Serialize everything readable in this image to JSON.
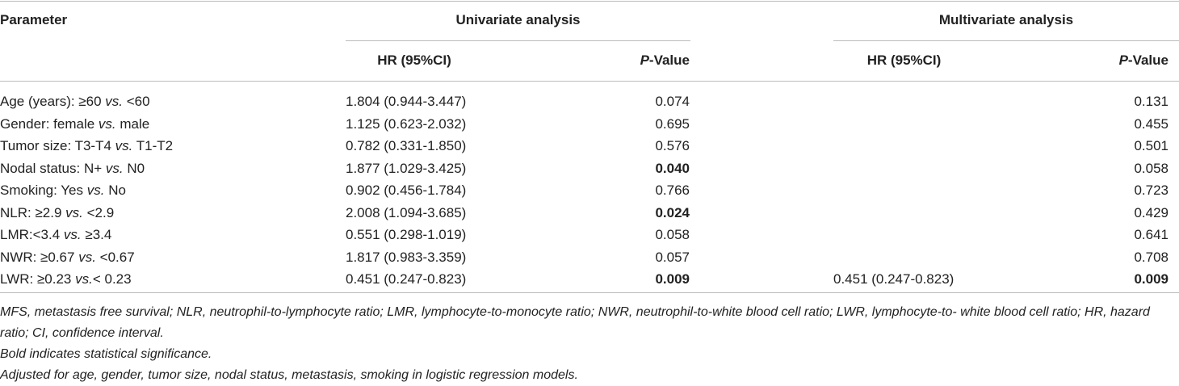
{
  "table": {
    "header": {
      "parameter": "Parameter",
      "univariate": "Univariate analysis",
      "multivariate": "Multivariate analysis",
      "uni_hr": "HR (95%CI)",
      "uni_p": [
        "P",
        "-Value"
      ],
      "multi_hr": "HR (95%CI)",
      "multi_p": [
        "P",
        "-Value"
      ]
    },
    "rows": [
      {
        "parameter": [
          "Age (years): ≥60 ",
          "vs.",
          " <60"
        ],
        "uni_hr": "1.804 (0.944-3.447)",
        "uni_p": "0.074",
        "uni_p_bold": false,
        "multi_hr": null,
        "multi_p": "0.131",
        "multi_p_bold": false
      },
      {
        "parameter": [
          "Gender: female ",
          "vs.",
          " male"
        ],
        "uni_hr": "1.125 (0.623-2.032)",
        "uni_p": "0.695",
        "uni_p_bold": false,
        "multi_hr": null,
        "multi_p": "0.455",
        "multi_p_bold": false
      },
      {
        "parameter": [
          "Tumor size: T3-T4 ",
          "vs.",
          " T1-T2"
        ],
        "uni_hr": "0.782 (0.331-1.850)",
        "uni_p": "0.576",
        "uni_p_bold": false,
        "multi_hr": null,
        "multi_p": "0.501",
        "multi_p_bold": false
      },
      {
        "parameter": [
          "Nodal status: N+ ",
          "vs.",
          " N0"
        ],
        "uni_hr": "1.877 (1.029-3.425)",
        "uni_p": "0.040",
        "uni_p_bold": true,
        "multi_hr": null,
        "multi_p": "0.058",
        "multi_p_bold": false
      },
      {
        "parameter": [
          "Smoking: Yes ",
          "vs.",
          " No"
        ],
        "uni_hr": "0.902 (0.456-1.784)",
        "uni_p": "0.766",
        "uni_p_bold": false,
        "multi_hr": null,
        "multi_p": "0.723",
        "multi_p_bold": false
      },
      {
        "parameter": [
          "NLR: ≥2.9 ",
          "vs.",
          " <2.9"
        ],
        "uni_hr": "2.008 (1.094-3.685)",
        "uni_p": "0.024",
        "uni_p_bold": true,
        "multi_hr": null,
        "multi_p": "0.429",
        "multi_p_bold": false
      },
      {
        "parameter": [
          "LMR:<3.4 ",
          "vs.",
          " ≥3.4"
        ],
        "uni_hr": "0.551 (0.298-1.019)",
        "uni_p": "0.058",
        "uni_p_bold": false,
        "multi_hr": null,
        "multi_p": "0.641",
        "multi_p_bold": false
      },
      {
        "parameter": [
          "NWR: ≥0.67 ",
          "vs.",
          " <0.67"
        ],
        "uni_hr": "1.817 (0.983-3.359)",
        "uni_p": "0.057",
        "uni_p_bold": false,
        "multi_hr": null,
        "multi_p": "0.708",
        "multi_p_bold": false
      },
      {
        "parameter": [
          "LWR: ≥0.23 ",
          "vs.",
          "< 0.23"
        ],
        "uni_hr": "0.451 (0.247-0.823)",
        "uni_p": "0.009",
        "uni_p_bold": true,
        "multi_hr": "0.451 (0.247-0.823)",
        "multi_p": "0.009",
        "multi_p_bold": true
      }
    ],
    "footnotes": [
      "MFS, metastasis free survival; NLR, neutrophil-to-lymphocyte ratio; LMR, lymphocyte-to-monocyte ratio; NWR, neutrophil-to-white blood cell ratio; LWR, lymphocyte-to- white blood cell ratio; HR, hazard ratio; CI, confidence interval.",
      "Bold indicates statistical significance.",
      "Adjusted for age, gender, tumor size, nodal status, metastasis, smoking in logistic regression models."
    ]
  }
}
